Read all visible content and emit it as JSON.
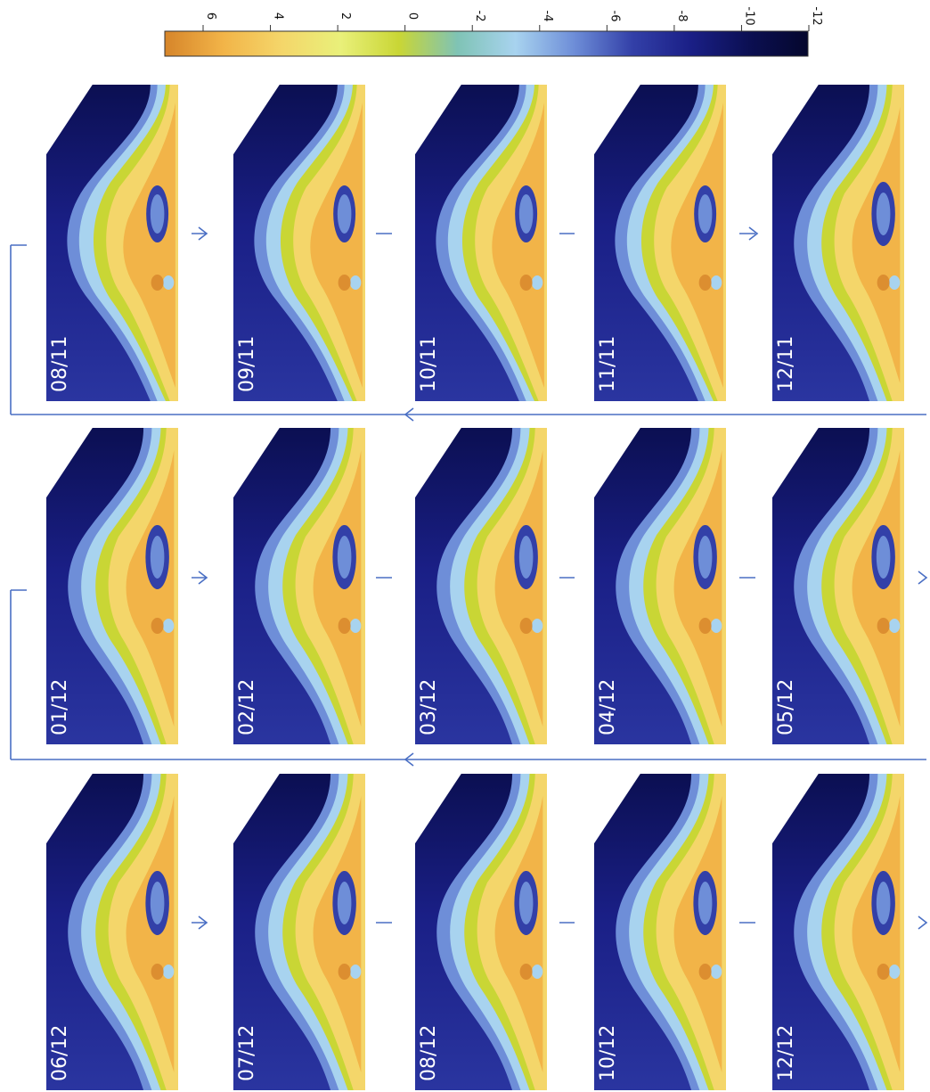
{
  "colorbar": {
    "ticks": [
      "6",
      "4",
      "2",
      "0",
      "-2",
      "-4",
      "-6",
      "-8",
      "-10",
      "-12"
    ],
    "gradient": [
      "#d6852a",
      "#f2b448",
      "#f4d66a",
      "#e9f07a",
      "#c9d635",
      "#7fc3b5",
      "#a8d3ef",
      "#6e8ed8",
      "#3340a8",
      "#1a1f86",
      "#0b0f52",
      "#05072d"
    ]
  },
  "columns": [
    {
      "panels": [
        {
          "label": "08/11",
          "variant": "a"
        },
        {
          "label": "09/11",
          "variant": "a"
        },
        {
          "label": "10/11",
          "variant": "a"
        },
        {
          "label": "11/11",
          "variant": "a"
        },
        {
          "label": "12/11",
          "variant": "b"
        }
      ]
    },
    {
      "panels": [
        {
          "label": "01/12",
          "variant": "b"
        },
        {
          "label": "02/12",
          "variant": "b"
        },
        {
          "label": "03/12",
          "variant": "b"
        },
        {
          "label": "04/12",
          "variant": "b"
        },
        {
          "label": "05/12",
          "variant": "b"
        }
      ]
    },
    {
      "panels": [
        {
          "label": "06/12",
          "variant": "b"
        },
        {
          "label": "07/12",
          "variant": "b"
        },
        {
          "label": "08/12",
          "variant": "b"
        },
        {
          "label": "10/12",
          "variant": "b"
        },
        {
          "label": "12/12",
          "variant": "b"
        }
      ]
    }
  ],
  "arrow_color": "#4a6fc4"
}
